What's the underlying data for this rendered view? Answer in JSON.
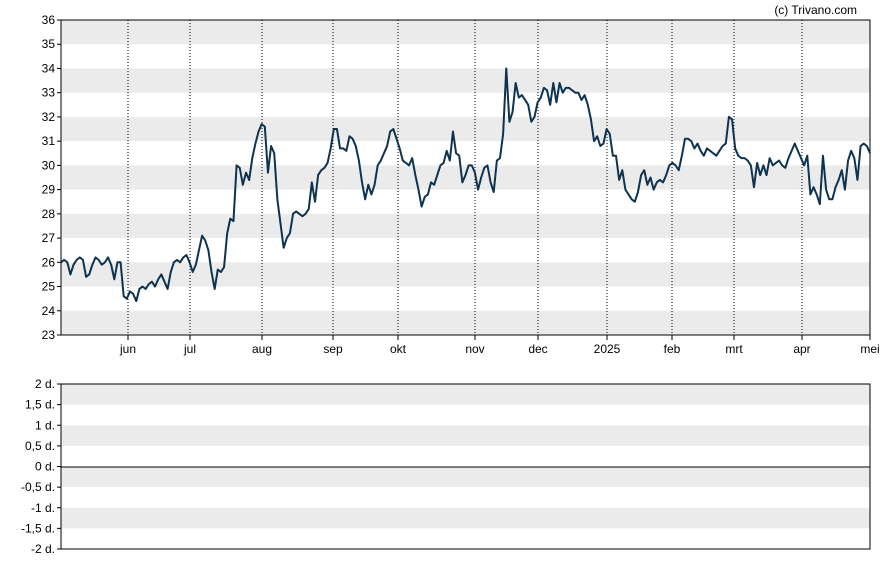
{
  "credit": "(c) Trivano.com",
  "colors": {
    "line": "#0d3350",
    "band": "#ebebeb",
    "axis": "#000000",
    "vgrid": "#000000"
  },
  "chart_data": [
    {
      "type": "line",
      "title": "",
      "xlabel": "",
      "ylabel": "",
      "ylim": [
        23,
        36
      ],
      "y_ticks": [
        23,
        24,
        25,
        26,
        27,
        28,
        29,
        30,
        31,
        32,
        33,
        34,
        35,
        36
      ],
      "grid": "horizontal alternating bands, dotted vertical lines at month ticks",
      "x_ticks": [
        "jun",
        "jul",
        "aug",
        "sep",
        "okt",
        "nov",
        "dec",
        "2025",
        "feb",
        "mrt",
        "apr",
        "mei"
      ],
      "series": [
        {
          "values": [
            26.0,
            26.1,
            26.0,
            25.5,
            25.9,
            26.1,
            26.2,
            26.1,
            25.4,
            25.5,
            25.9,
            26.2,
            26.1,
            25.9,
            26.0,
            26.2,
            25.9,
            25.3,
            26.0,
            26.0,
            24.6,
            24.5,
            24.8,
            24.7,
            24.4,
            24.9,
            25.0,
            24.9,
            25.1,
            25.2,
            25.0,
            25.3,
            25.5,
            25.2,
            24.9,
            25.6,
            26.0,
            26.1,
            26.0,
            26.2,
            26.3,
            26.0,
            25.6,
            25.9,
            26.5,
            27.1,
            26.9,
            26.5,
            25.6,
            24.9,
            25.7,
            25.6,
            25.8,
            27.2,
            27.8,
            27.7,
            30.0,
            29.9,
            29.2,
            29.7,
            29.4,
            30.3,
            30.9,
            31.4,
            31.7,
            31.6,
            29.7,
            30.8,
            30.5,
            28.6,
            27.6,
            26.6,
            27.0,
            27.2,
            28.0,
            28.1,
            28.0,
            27.9,
            28.0,
            28.2,
            29.3,
            28.5,
            29.6,
            29.8,
            29.9,
            30.1,
            30.7,
            31.5,
            31.5,
            30.7,
            30.7,
            30.6,
            31.2,
            31.1,
            30.8,
            30.2,
            29.3,
            28.6,
            29.2,
            28.8,
            29.2,
            30.0,
            30.2,
            30.5,
            30.8,
            31.4,
            31.5,
            31.1,
            30.7,
            30.2,
            30.1,
            30.0,
            30.3,
            29.6,
            29.0,
            28.3,
            28.7,
            28.8,
            29.3,
            29.2,
            29.6,
            30.0,
            30.1,
            30.6,
            30.2,
            31.4,
            30.5,
            30.4,
            29.3,
            29.6,
            30.0,
            30.0,
            29.7,
            29.0,
            29.5,
            29.9,
            30.0,
            29.3,
            28.9,
            30.2,
            30.3,
            31.3,
            34.0,
            31.8,
            32.2,
            33.4,
            32.8,
            32.9,
            32.7,
            32.5,
            31.8,
            32.0,
            32.6,
            32.8,
            33.2,
            33.1,
            32.5,
            33.4,
            32.6,
            33.4,
            33.0,
            33.2,
            33.2,
            33.1,
            33.0,
            33.0,
            32.7,
            32.9,
            32.5,
            31.9,
            31.0,
            31.2,
            30.8,
            30.9,
            31.5,
            31.3,
            30.4,
            30.4,
            29.4,
            29.8,
            29.0,
            28.8,
            28.6,
            28.5,
            28.9,
            29.6,
            29.8,
            29.2,
            29.5,
            29.0,
            29.3,
            29.4,
            29.3,
            29.6,
            30.0,
            30.1,
            30.0,
            29.8,
            30.4,
            31.1,
            31.1,
            31.0,
            30.7,
            30.9,
            30.6,
            30.4,
            30.7,
            30.6,
            30.5,
            30.4,
            30.6,
            30.8,
            30.9,
            32.0,
            31.9,
            30.7,
            30.4,
            30.3,
            30.3,
            30.2,
            30.0,
            29.1,
            30.1,
            29.6,
            30.0,
            29.6,
            30.3,
            30.0,
            30.1,
            30.2,
            30.0,
            29.9,
            30.3,
            30.6,
            30.9,
            30.6,
            30.3,
            30.0,
            30.4,
            28.8,
            29.1,
            28.8,
            28.4,
            30.4,
            29.0,
            28.6,
            28.6,
            29.1,
            29.4,
            29.8,
            29.0,
            30.2,
            30.6,
            30.3,
            29.4,
            30.8,
            30.9,
            30.8,
            30.5
          ]
        }
      ]
    },
    {
      "type": "line",
      "title": "",
      "xlabel": "",
      "ylabel": "",
      "ylim": [
        -2,
        2
      ],
      "y_ticks": [
        "2 d.",
        "1,5 d.",
        "1 d.",
        "0,5 d.",
        "0 d.",
        "-0,5 d.",
        "-1 d.",
        "-1,5 d.",
        "-2 d."
      ],
      "grid": "horizontal alternating bands, zero line",
      "series": []
    }
  ]
}
